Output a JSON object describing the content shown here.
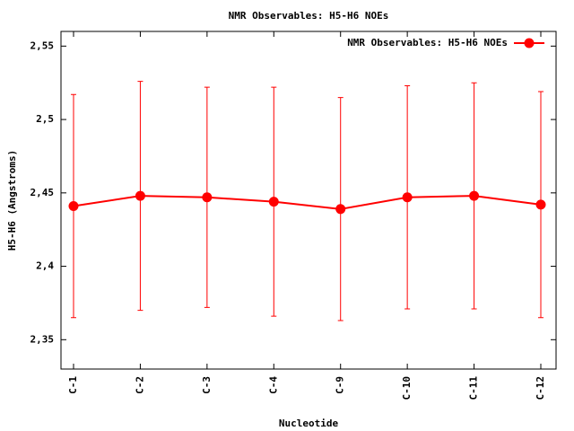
{
  "chart_data": {
    "type": "line",
    "title": "NMR Observables: H5-H6 NOEs",
    "x_label": "Nucleotide",
    "y_label": "H5-H6 (Angstroms)",
    "categories": [
      "C-1",
      "C-2",
      "C-3",
      "C-4",
      "C-9",
      "C-10",
      "C-11",
      "C-12"
    ],
    "series": [
      {
        "name": "NMR Observables: H5-H6 NOEs",
        "color": "#ff0000",
        "values": [
          2.441,
          2.448,
          2.447,
          2.444,
          2.439,
          2.447,
          2.448,
          2.442
        ],
        "errors": [
          0.076,
          0.078,
          0.075,
          0.078,
          0.076,
          0.076,
          0.077,
          0.077
        ]
      }
    ],
    "ylim": [
      2.33,
      2.56
    ],
    "yticks": [
      {
        "value": 2.35,
        "label": "2,35"
      },
      {
        "value": 2.4,
        "label": "2,4"
      },
      {
        "value": 2.45,
        "label": "2,45"
      },
      {
        "value": 2.5,
        "label": "2,5"
      },
      {
        "value": 2.55,
        "label": "2,55"
      }
    ],
    "legend": "top-right",
    "grid": false
  }
}
